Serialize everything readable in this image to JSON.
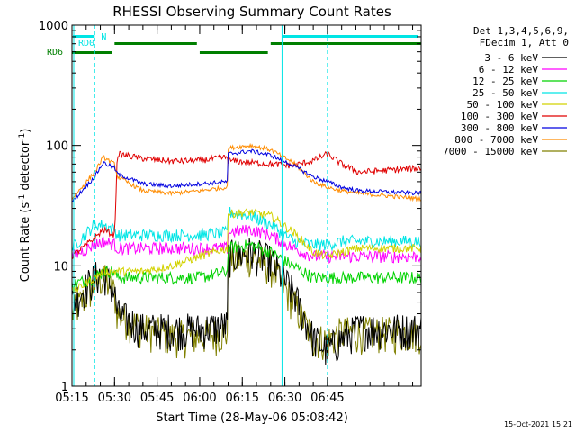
{
  "chart_data": {
    "type": "line",
    "title": "RHESSI Observing Summary Count Rates",
    "xlabel": "Start Time (28-May-06 05:08:42)",
    "ylabel_main": "Count Rate (s",
    "ylabel_sup1": "-1",
    "ylabel_mid": " detector",
    "ylabel_sup2": "-1",
    "ylabel_end": ")",
    "ylog": true,
    "ylim": [
      1,
      1000
    ],
    "xlim_minutes": [
      5.15,
      6.78
    ],
    "x_ticks": [
      "05:15",
      "05:30",
      "05:45",
      "06:00",
      "06:15",
      "06:30",
      "06:45"
    ],
    "y_ticks": [
      "1",
      "10",
      "100",
      "1000"
    ],
    "timestamp": "15-Oct-2021 15:21",
    "legend_header": [
      "Det 1,3,4,5,6,9,",
      "FDecim 1, Att 0"
    ],
    "flags": {
      "rd0_label": "RD0",
      "rd6_label": "RD6",
      "n_label": "N",
      "rd0_color": "#00e5e5",
      "rd6_color": "#007f00"
    },
    "series": [
      {
        "name": "3 - 6 keV",
        "color": "#000000"
      },
      {
        "name": "6 - 12 keV",
        "color": "#ff00ff"
      },
      {
        "name": "12 - 25 keV",
        "color": "#00d200"
      },
      {
        "name": "25 - 50 keV",
        "color": "#00e5e5"
      },
      {
        "name": "50 - 100 keV",
        "color": "#d2d200"
      },
      {
        "name": "100 - 300 keV",
        "color": "#e00000"
      },
      {
        "name": "300 - 800 keV",
        "color": "#0000e0"
      },
      {
        "name": "800 - 7000 keV",
        "color": "#ff8c00"
      },
      {
        "name": "7000 - 15000 keV",
        "color": "#808000"
      }
    ],
    "profiles": {
      "times": [
        5.15,
        5.23,
        5.26,
        5.3,
        5.31,
        5.4,
        5.5,
        5.6,
        5.7,
        6.0,
        6.1,
        6.18,
        6.25,
        6.33,
        6.4,
        6.45,
        6.5,
        6.56,
        6.78
      ],
      "s800": [
        36,
        60,
        80,
        70,
        55,
        42,
        40,
        42,
        45,
        72,
        95,
        100,
        92,
        72,
        50,
        45,
        42,
        40,
        36
      ],
      "s300": [
        34,
        55,
        72,
        65,
        58,
        48,
        46,
        48,
        50,
        70,
        85,
        90,
        83,
        68,
        55,
        50,
        45,
        42,
        40
      ],
      "s100": [
        12,
        17,
        20,
        18,
        85,
        78,
        74,
        75,
        80,
        95,
        75,
        72,
        70,
        68,
        75,
        85,
        70,
        60,
        65
      ],
      "s25": [
        14,
        22,
        22,
        20,
        18,
        18,
        18,
        18,
        19,
        25,
        28,
        26,
        22,
        16,
        15,
        15,
        16,
        16,
        16
      ],
      "s50": [
        6,
        8,
        9,
        9,
        9,
        9,
        10,
        12,
        14,
        20,
        27,
        28,
        26,
        19,
        13,
        12,
        13,
        14,
        14
      ],
      "s6": [
        12,
        15,
        16,
        15,
        14,
        14,
        14,
        14,
        14,
        17,
        19,
        20,
        18,
        14,
        12,
        12,
        12,
        12,
        12
      ],
      "s12": [
        7,
        8,
        9,
        9,
        8,
        8,
        8,
        8,
        9,
        11,
        14,
        15,
        13,
        10,
        8,
        8,
        8,
        8,
        8
      ],
      "s3": [
        5,
        8,
        9,
        6,
        4,
        3,
        3,
        3,
        3.2,
        7,
        12,
        13,
        11,
        6,
        2.5,
        2,
        2.5,
        3,
        3
      ],
      "s7000": [
        4,
        7,
        8,
        6,
        4,
        3,
        2.6,
        2.6,
        2.8,
        6,
        11,
        12,
        10,
        5,
        2.5,
        2.4,
        2.8,
        2.8,
        2.8
      ]
    }
  }
}
